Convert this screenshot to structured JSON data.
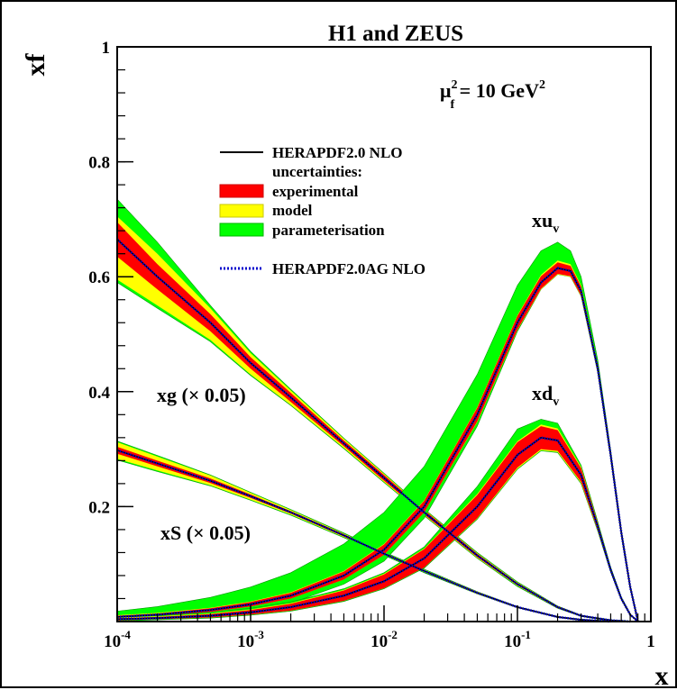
{
  "chart_data": {
    "type": "line",
    "title": "H1 and ZEUS",
    "xlabel": "x",
    "ylabel": "xf",
    "xscale": "log",
    "xlim": [
      0.0001,
      1
    ],
    "ylim": [
      0,
      1
    ],
    "x_ticks": [
      {
        "value": 0.0001,
        "base": "10",
        "exp": "-4"
      },
      {
        "value": 0.001,
        "base": "10",
        "exp": "-3"
      },
      {
        "value": 0.01,
        "base": "10",
        "exp": "-2"
      },
      {
        "value": 0.1,
        "base": "10",
        "exp": "-1"
      },
      {
        "value": 1,
        "base": "1",
        "exp": ""
      }
    ],
    "y_ticks": [
      {
        "value": 0.2,
        "label": "0.2"
      },
      {
        "value": 0.4,
        "label": "0.4"
      },
      {
        "value": 0.6,
        "label": "0.6"
      },
      {
        "value": 0.8,
        "label": "0.8"
      },
      {
        "value": 1,
        "label": "1"
      }
    ],
    "scale_annotation": {
      "mu": "μ",
      "sub": "f",
      "sup": "2",
      "rest": " = 10 GeV",
      "sup2": "2"
    },
    "legend": {
      "placement": "upper-center",
      "central": "HERAPDF2.0 NLO",
      "heading": "uncertainties:",
      "bands": [
        {
          "label": "experimental",
          "color": "#ff0000"
        },
        {
          "label": "model",
          "color": "#ffff00"
        },
        {
          "label": "parameterisation",
          "color": "#00ff00"
        }
      ],
      "alternative": "HERAPDF2.0AG NLO"
    },
    "colors": {
      "central": "#000000",
      "alternative": "#0000cc",
      "experimental": "#ff0000",
      "model": "#ffff00",
      "parameterisation": "#00ff00"
    },
    "series": [
      {
        "name": "xg (× 0.05)",
        "label": {
          "base": "xg",
          "factor": "(× 0.05)"
        },
        "x": [
          0.0001,
          0.0002,
          0.0005,
          0.001,
          0.002,
          0.005,
          0.01,
          0.02,
          0.05,
          0.1,
          0.2,
          0.3,
          0.5,
          0.7
        ],
        "central": [
          0.665,
          0.6,
          0.52,
          0.45,
          0.39,
          0.31,
          0.25,
          0.19,
          0.115,
          0.065,
          0.025,
          0.01,
          0.002,
          0.0
        ],
        "exp_band": [
          [
            0.635,
            0.695
          ],
          [
            0.578,
            0.622
          ],
          [
            0.505,
            0.535
          ],
          [
            0.44,
            0.46
          ],
          [
            0.382,
            0.398
          ],
          [
            0.305,
            0.315
          ],
          [
            0.245,
            0.255
          ],
          [
            0.186,
            0.194
          ],
          [
            0.112,
            0.118
          ],
          [
            0.063,
            0.067
          ],
          [
            0.024,
            0.026
          ],
          [
            0.009,
            0.011
          ],
          [
            0.001,
            0.003
          ],
          [
            0.0,
            0.001
          ]
        ],
        "model_band": [
          [
            0.595,
            0.705
          ],
          [
            0.55,
            0.64
          ],
          [
            0.49,
            0.545
          ],
          [
            0.43,
            0.467
          ],
          [
            0.377,
            0.402
          ],
          [
            0.302,
            0.318
          ],
          [
            0.243,
            0.257
          ],
          [
            0.185,
            0.195
          ],
          [
            0.111,
            0.119
          ],
          [
            0.062,
            0.068
          ],
          [
            0.023,
            0.027
          ],
          [
            0.009,
            0.011
          ],
          [
            0.001,
            0.003
          ],
          [
            0.0,
            0.001
          ]
        ],
        "param_band": [
          [
            0.59,
            0.735
          ],
          [
            0.545,
            0.66
          ],
          [
            0.487,
            0.55
          ],
          [
            0.428,
            0.47
          ],
          [
            0.376,
            0.404
          ],
          [
            0.301,
            0.319
          ],
          [
            0.242,
            0.258
          ],
          [
            0.184,
            0.196
          ],
          [
            0.11,
            0.12
          ],
          [
            0.061,
            0.069
          ],
          [
            0.023,
            0.027
          ],
          [
            0.009,
            0.011
          ],
          [
            0.001,
            0.003
          ],
          [
            0.0,
            0.001
          ]
        ]
      },
      {
        "name": "xS (× 0.05)",
        "label": {
          "base": "xS",
          "factor": "(× 0.05)"
        },
        "x": [
          0.0001,
          0.0002,
          0.0005,
          0.001,
          0.002,
          0.005,
          0.01,
          0.02,
          0.05,
          0.1,
          0.2,
          0.3,
          0.5
        ],
        "central": [
          0.298,
          0.275,
          0.245,
          0.218,
          0.19,
          0.15,
          0.118,
          0.088,
          0.05,
          0.025,
          0.008,
          0.003,
          0.0
        ],
        "exp_band": [
          [
            0.292,
            0.304
          ],
          [
            0.27,
            0.28
          ],
          [
            0.241,
            0.249
          ],
          [
            0.215,
            0.221
          ],
          [
            0.188,
            0.192
          ],
          [
            0.148,
            0.152
          ],
          [
            0.117,
            0.119
          ],
          [
            0.087,
            0.089
          ],
          [
            0.049,
            0.051
          ],
          [
            0.024,
            0.026
          ],
          [
            0.007,
            0.009
          ],
          [
            0.002,
            0.004
          ],
          [
            0.0,
            0.001
          ]
        ],
        "model_band": [
          [
            0.283,
            0.312
          ],
          [
            0.263,
            0.287
          ],
          [
            0.237,
            0.254
          ],
          [
            0.212,
            0.224
          ],
          [
            0.186,
            0.194
          ],
          [
            0.147,
            0.153
          ],
          [
            0.116,
            0.12
          ],
          [
            0.086,
            0.09
          ],
          [
            0.048,
            0.052
          ],
          [
            0.024,
            0.026
          ],
          [
            0.007,
            0.009
          ],
          [
            0.002,
            0.004
          ],
          [
            0.0,
            0.001
          ]
        ],
        "param_band": [
          [
            0.281,
            0.314
          ],
          [
            0.261,
            0.289
          ],
          [
            0.236,
            0.255
          ],
          [
            0.211,
            0.225
          ],
          [
            0.185,
            0.195
          ],
          [
            0.146,
            0.154
          ],
          [
            0.115,
            0.121
          ],
          [
            0.085,
            0.091
          ],
          [
            0.048,
            0.052
          ],
          [
            0.024,
            0.026
          ],
          [
            0.007,
            0.009
          ],
          [
            0.002,
            0.004
          ],
          [
            0.0,
            0.001
          ]
        ]
      },
      {
        "name": "xu_v",
        "label": {
          "base": "xu",
          "sub": "v"
        },
        "x": [
          0.0001,
          0.0002,
          0.0005,
          0.001,
          0.002,
          0.005,
          0.01,
          0.02,
          0.05,
          0.1,
          0.15,
          0.2,
          0.25,
          0.3,
          0.4,
          0.5,
          0.6,
          0.7,
          0.8
        ],
        "central": [
          0.008,
          0.012,
          0.02,
          0.03,
          0.045,
          0.08,
          0.125,
          0.2,
          0.36,
          0.52,
          0.59,
          0.615,
          0.61,
          0.575,
          0.44,
          0.29,
          0.155,
          0.06,
          0.0
        ],
        "exp_band": [
          [
            0.006,
            0.01
          ],
          [
            0.01,
            0.014
          ],
          [
            0.017,
            0.023
          ],
          [
            0.026,
            0.034
          ],
          [
            0.04,
            0.05
          ],
          [
            0.073,
            0.087
          ],
          [
            0.116,
            0.134
          ],
          [
            0.19,
            0.21
          ],
          [
            0.348,
            0.372
          ],
          [
            0.508,
            0.532
          ],
          [
            0.579,
            0.601
          ],
          [
            0.605,
            0.625
          ],
          [
            0.601,
            0.619
          ],
          [
            0.567,
            0.583
          ],
          [
            0.434,
            0.446
          ],
          [
            0.285,
            0.295
          ],
          [
            0.152,
            0.158
          ],
          [
            0.058,
            0.062
          ],
          [
            0.0,
            0.002
          ]
        ],
        "model_band": [
          [
            0.006,
            0.011
          ],
          [
            0.01,
            0.015
          ],
          [
            0.017,
            0.024
          ],
          [
            0.026,
            0.035
          ],
          [
            0.04,
            0.051
          ],
          [
            0.073,
            0.088
          ],
          [
            0.116,
            0.135
          ],
          [
            0.19,
            0.211
          ],
          [
            0.347,
            0.373
          ],
          [
            0.507,
            0.533
          ],
          [
            0.578,
            0.603
          ],
          [
            0.604,
            0.628
          ],
          [
            0.6,
            0.622
          ],
          [
            0.566,
            0.585
          ],
          [
            0.433,
            0.447
          ],
          [
            0.284,
            0.296
          ],
          [
            0.151,
            0.159
          ],
          [
            0.058,
            0.062
          ],
          [
            0.0,
            0.002
          ]
        ],
        "param_band": [
          [
            0.004,
            0.018
          ],
          [
            0.007,
            0.026
          ],
          [
            0.012,
            0.042
          ],
          [
            0.02,
            0.06
          ],
          [
            0.032,
            0.085
          ],
          [
            0.065,
            0.135
          ],
          [
            0.105,
            0.19
          ],
          [
            0.18,
            0.27
          ],
          [
            0.34,
            0.43
          ],
          [
            0.505,
            0.585
          ],
          [
            0.578,
            0.645
          ],
          [
            0.604,
            0.66
          ],
          [
            0.6,
            0.645
          ],
          [
            0.566,
            0.6
          ],
          [
            0.433,
            0.455
          ],
          [
            0.284,
            0.298
          ],
          [
            0.151,
            0.16
          ],
          [
            0.058,
            0.063
          ],
          [
            0.0,
            0.002
          ]
        ]
      },
      {
        "name": "xd_v",
        "label": {
          "base": "xd",
          "sub": "v"
        },
        "x": [
          0.0001,
          0.0002,
          0.0005,
          0.001,
          0.002,
          0.005,
          0.01,
          0.02,
          0.05,
          0.1,
          0.15,
          0.2,
          0.3,
          0.4,
          0.5,
          0.6,
          0.7,
          0.8
        ],
        "central": [
          0.004,
          0.006,
          0.01,
          0.016,
          0.025,
          0.045,
          0.07,
          0.11,
          0.2,
          0.29,
          0.32,
          0.315,
          0.255,
          0.165,
          0.09,
          0.04,
          0.012,
          0.0
        ],
        "exp_band": [
          [
            0.002,
            0.006
          ],
          [
            0.004,
            0.008
          ],
          [
            0.007,
            0.013
          ],
          [
            0.012,
            0.02
          ],
          [
            0.019,
            0.031
          ],
          [
            0.036,
            0.054
          ],
          [
            0.058,
            0.082
          ],
          [
            0.094,
            0.126
          ],
          [
            0.18,
            0.22
          ],
          [
            0.268,
            0.312
          ],
          [
            0.3,
            0.34
          ],
          [
            0.297,
            0.333
          ],
          [
            0.243,
            0.267
          ],
          [
            0.159,
            0.171
          ],
          [
            0.087,
            0.093
          ],
          [
            0.038,
            0.042
          ],
          [
            0.011,
            0.013
          ],
          [
            0.0,
            0.001
          ]
        ],
        "model_band": [
          [
            0.002,
            0.007
          ],
          [
            0.004,
            0.009
          ],
          [
            0.007,
            0.014
          ],
          [
            0.012,
            0.021
          ],
          [
            0.019,
            0.032
          ],
          [
            0.036,
            0.055
          ],
          [
            0.058,
            0.083
          ],
          [
            0.094,
            0.127
          ],
          [
            0.179,
            0.222
          ],
          [
            0.266,
            0.314
          ],
          [
            0.298,
            0.343
          ],
          [
            0.295,
            0.336
          ],
          [
            0.241,
            0.269
          ],
          [
            0.158,
            0.172
          ],
          [
            0.086,
            0.094
          ],
          [
            0.038,
            0.042
          ],
          [
            0.011,
            0.013
          ],
          [
            0.0,
            0.001
          ]
        ],
        "param_band": [
          [
            0.001,
            0.008
          ],
          [
            0.003,
            0.01
          ],
          [
            0.006,
            0.016
          ],
          [
            0.011,
            0.023
          ],
          [
            0.018,
            0.034
          ],
          [
            0.035,
            0.057
          ],
          [
            0.057,
            0.085
          ],
          [
            0.093,
            0.13
          ],
          [
            0.178,
            0.235
          ],
          [
            0.265,
            0.335
          ],
          [
            0.297,
            0.352
          ],
          [
            0.294,
            0.345
          ],
          [
            0.24,
            0.272
          ],
          [
            0.157,
            0.174
          ],
          [
            0.086,
            0.095
          ],
          [
            0.038,
            0.043
          ],
          [
            0.011,
            0.013
          ],
          [
            0.0,
            0.001
          ]
        ]
      }
    ]
  }
}
